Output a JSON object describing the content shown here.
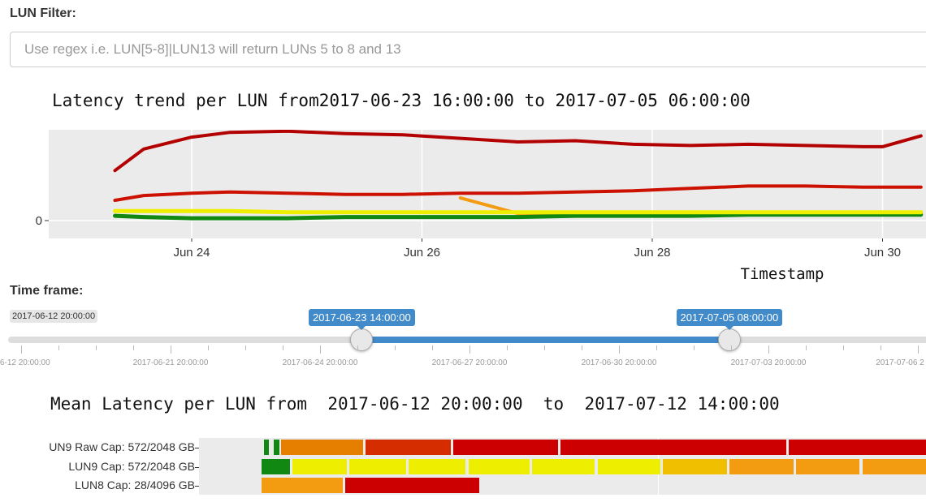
{
  "filter": {
    "label": "LUN Filter:",
    "placeholder": "Use regex i.e. LUN[5-8]|LUN13 will return LUNs 5 to 8 and 13"
  },
  "trend": {
    "title": "Latency trend per LUN from2017-06-23 16:00:00 to 2017-07-05 06:00:00",
    "xlabel": "Timestamp",
    "y_tick": "0",
    "x_ticks": [
      "Jun 24",
      "Jun 26",
      "Jun 28",
      "Jun 30"
    ]
  },
  "timeframe": {
    "label": "Time frame:",
    "min_label": "2017-06-12 20:00:00",
    "from_value": "2017-06-23 14:00:00",
    "to_value": "2017-07-05 08:00:00",
    "from_fraction": 0.382,
    "to_fraction": 0.779,
    "tick_labels": [
      "06-12 20:00:00",
      "2017-06-21 20:00:00",
      "2017-06-24 20:00:00",
      "2017-06-27 20:00:00",
      "2017-06-30 20:00:00",
      "2017-07-03 20:00:00",
      "2017-07-06 2"
    ]
  },
  "heatmap": {
    "title": "Mean Latency per LUN from  2017-06-12 20:00:00  to  2017-07-12 14:00:00",
    "rows": [
      {
        "label": "UN9 Raw Cap: 572/2048 GB"
      },
      {
        "label": "LUN9 Cap: 572/2048 GB"
      },
      {
        "label": "LUN8 Cap: 28/4096 GB"
      }
    ]
  },
  "colors": {
    "dark_red": "#b30000",
    "red": "#cc1100",
    "orange": "#f39c12",
    "yellow": "#eeee00",
    "green": "#118811",
    "accent": "#428bca"
  },
  "chart_data": {
    "type": "line",
    "title": "Latency trend per LUN from2017-06-23 16:00:00 to 2017-07-05 06:00:00",
    "xlabel": "Timestamp",
    "ylabel": "",
    "x": [
      "2017-06-23 08:00",
      "2017-06-23 14:00",
      "2017-06-24 00:00",
      "2017-06-24 08:00",
      "2017-06-24 20:00",
      "2017-06-25 08:00",
      "2017-06-25 20:00",
      "2017-06-26 08:00",
      "2017-06-26 20:00",
      "2017-06-27 08:00",
      "2017-06-27 20:00",
      "2017-06-28 08:00",
      "2017-06-28 20:00",
      "2017-06-29 08:00",
      "2017-06-29 20:00",
      "2017-06-30 00:00",
      "2017-06-30 08:00"
    ],
    "series": [
      {
        "color": "#b30000",
        "values": [
          4.2,
          6.0,
          7.0,
          7.4,
          7.5,
          7.3,
          7.2,
          6.9,
          6.6,
          6.7,
          6.4,
          6.3,
          6.4,
          6.3,
          6.2,
          6.2,
          7.1
        ]
      },
      {
        "color": "#cc1100",
        "values": [
          1.7,
          2.1,
          2.3,
          2.4,
          2.3,
          2.2,
          2.2,
          2.3,
          2.3,
          2.4,
          2.5,
          2.7,
          2.9,
          2.9,
          2.8,
          2.8,
          2.8
        ]
      },
      {
        "color": "#f39c12",
        "values": [
          null,
          null,
          null,
          null,
          null,
          null,
          null,
          1.9,
          0.6,
          0.6,
          0.6,
          0.6,
          0.6,
          0.6,
          0.6,
          0.6,
          0.6
        ]
      },
      {
        "color": "#118811",
        "values": [
          0.4,
          0.3,
          0.2,
          0.2,
          0.2,
          0.3,
          0.3,
          0.3,
          0.3,
          0.4,
          0.4,
          0.4,
          0.5,
          0.5,
          0.5,
          0.5,
          0.5
        ]
      },
      {
        "color": "#eeee00",
        "values": [
          0.8,
          0.8,
          0.8,
          0.8,
          0.7,
          0.7,
          0.7,
          0.7,
          0.7,
          0.7,
          0.7,
          0.7,
          0.7,
          0.7,
          0.7,
          0.7,
          0.7
        ]
      }
    ]
  }
}
